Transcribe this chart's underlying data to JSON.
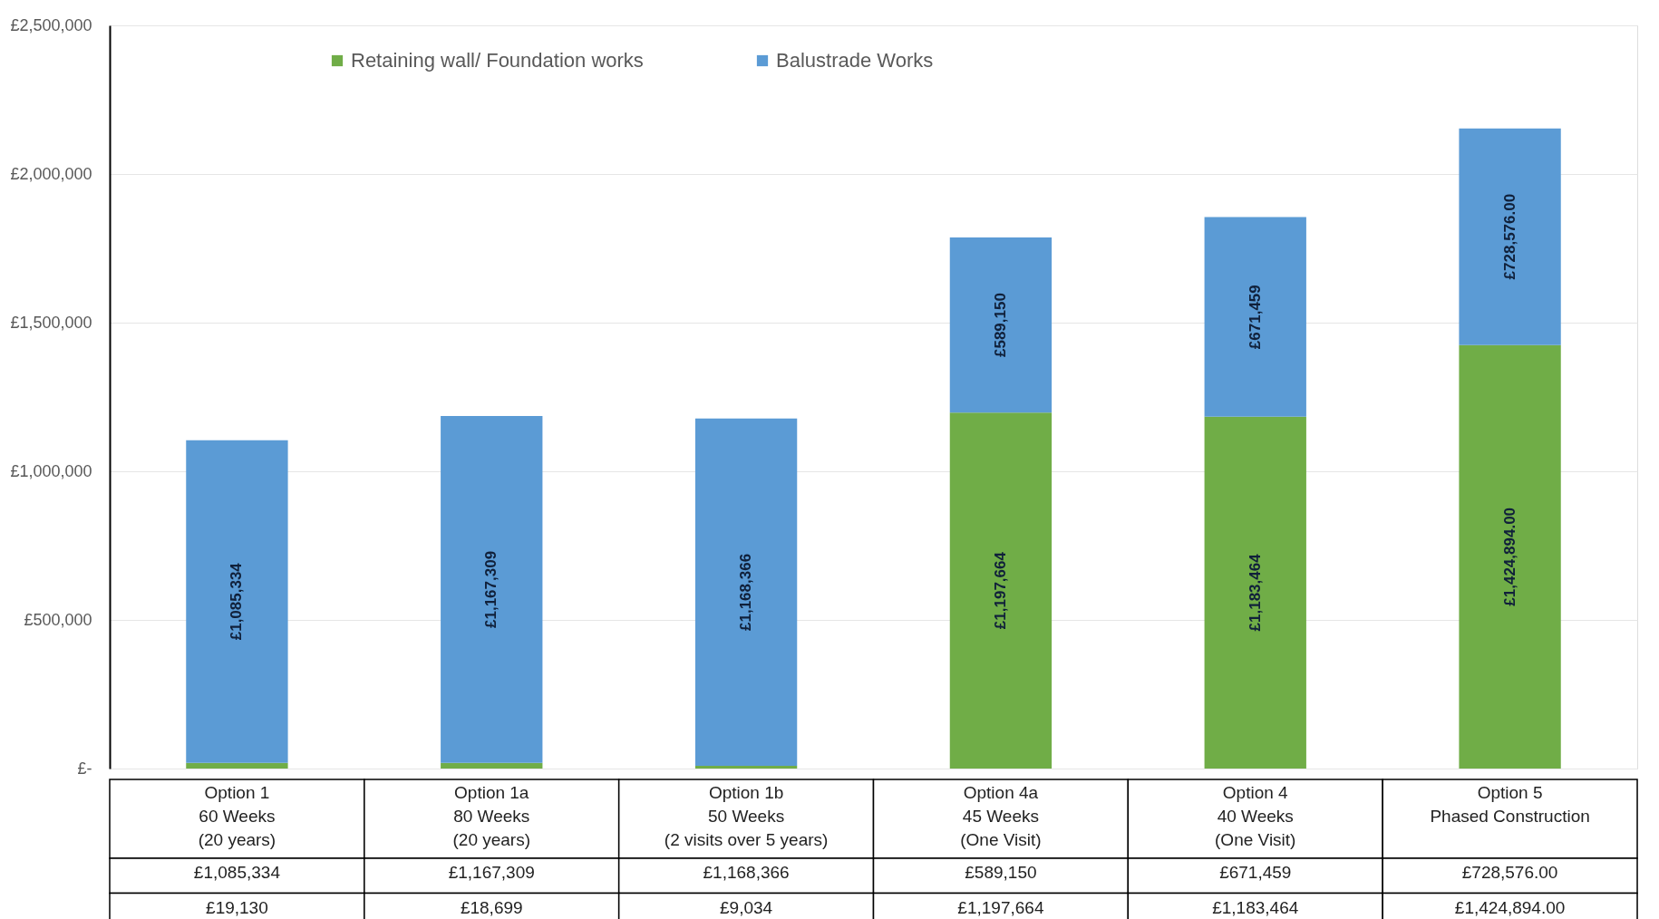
{
  "chart_data": {
    "type": "bar",
    "stacked": true,
    "categories": [
      "Option 1\n60 Weeks\n(20 years)",
      "Option 1a\n80 Weeks\n(20 years)",
      "Option 1b\n50 Weeks\n(2 visits over 5 years)",
      "Option 4a\n45 Weeks\n(One Visit)",
      "Option 4\n40 Weeks\n(One Visit)",
      "Option 5\nPhased Construction"
    ],
    "series": [
      {
        "name": "Retaining wall/ Foundation works",
        "color": "#70ad47",
        "values": [
          19130,
          18699,
          9034,
          1197664,
          1183464,
          1424894
        ],
        "value_labels": [
          "£19,130",
          "£18,699",
          "£9,034",
          "£1,197,664",
          "£1,183,464",
          "£1,424,894.00"
        ]
      },
      {
        "name": "Balustrade Works",
        "color": "#5b9bd5",
        "values": [
          1085334,
          1167309,
          1168366,
          589150,
          671459,
          728576
        ],
        "value_labels": [
          "£1,085,334",
          "£1,167,309",
          "£1,168,366",
          "£589,150",
          "£671,459",
          "£728,576.00"
        ]
      }
    ],
    "ylim": [
      0,
      2500000
    ],
    "yticks": [
      {
        "value": 0,
        "label": "£-"
      },
      {
        "value": 500000,
        "label": "£500,000"
      },
      {
        "value": 1000000,
        "label": "£1,000,000"
      },
      {
        "value": 1500000,
        "label": "£1,500,000"
      },
      {
        "value": 2000000,
        "label": "£2,000,000"
      },
      {
        "value": 2500000,
        "label": "£2,500,000"
      }
    ],
    "grid": "y",
    "legend": "top"
  }
}
